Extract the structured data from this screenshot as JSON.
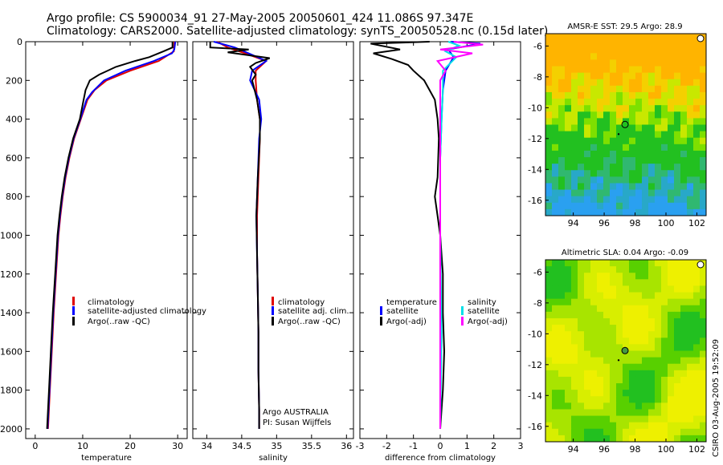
{
  "title": {
    "line1": "Argo profile: CS 5900034_91 27-May-2005 20050601_424 11.086S 97.347E",
    "line2": "Climatology: CARS2000. Satellite-adjusted climatology: synTS_20050528.nc (0.15d later)"
  },
  "colors": {
    "clim": "#e00000",
    "sat": "#0000ff",
    "argo": "#000000",
    "sal_sat": "#00e0e8",
    "sal_argo": "#ff00ff"
  },
  "chart_data": [
    {
      "type": "line",
      "name": "temperature",
      "xlabel": "temperature",
      "xlim": [
        -2,
        32
      ],
      "ylim": [
        2050,
        0
      ],
      "xticks": [
        0,
        10,
        20,
        30
      ],
      "yticks": [
        0,
        200,
        400,
        600,
        800,
        1000,
        1200,
        1400,
        1600,
        1800,
        2000
      ],
      "legend": [
        "climatology",
        "satellite-adjusted climatology",
        "Argo(..raw -QC)"
      ],
      "series": [
        {
          "name": "climatology",
          "color": "clim",
          "points": [
            [
              29.3,
              0
            ],
            [
              29.2,
              50
            ],
            [
              26,
              100
            ],
            [
              20,
              150
            ],
            [
              15,
              200
            ],
            [
              12.5,
              250
            ],
            [
              11,
              300
            ],
            [
              9.6,
              400
            ],
            [
              8.2,
              500
            ],
            [
              7.2,
              600
            ],
            [
              6.4,
              700
            ],
            [
              5.8,
              800
            ],
            [
              5.3,
              900
            ],
            [
              4.9,
              1000
            ],
            [
              4.4,
              1200
            ],
            [
              3.9,
              1400
            ],
            [
              3.5,
              1600
            ],
            [
              3.1,
              1800
            ],
            [
              2.7,
              2000
            ]
          ]
        },
        {
          "name": "satellite-adjusted climatology",
          "color": "sat",
          "points": [
            [
              29.5,
              0
            ],
            [
              29.3,
              40
            ],
            [
              28.8,
              60
            ],
            [
              25,
              100
            ],
            [
              19,
              150
            ],
            [
              14.5,
              200
            ],
            [
              12,
              260
            ],
            [
              10.8,
              300
            ],
            [
              9.5,
              400
            ],
            [
              8.1,
              500
            ],
            [
              7.1,
              600
            ],
            [
              6.3,
              700
            ],
            [
              5.7,
              800
            ],
            [
              5.2,
              900
            ],
            [
              4.8,
              1000
            ],
            [
              4.3,
              1200
            ],
            [
              3.8,
              1400
            ],
            [
              3.4,
              1600
            ],
            [
              3.0,
              1800
            ],
            [
              2.6,
              2000
            ]
          ]
        },
        {
          "name": "Argo",
          "color": "argo",
          "points": [
            [
              28.9,
              0
            ],
            [
              28.9,
              30
            ],
            [
              27,
              50
            ],
            [
              24,
              80
            ],
            [
              21,
              100
            ],
            [
              17,
              130
            ],
            [
              13.5,
              170
            ],
            [
              11.5,
              200
            ],
            [
              10.6,
              250
            ],
            [
              10.2,
              300
            ],
            [
              9.4,
              400
            ],
            [
              8.0,
              500
            ],
            [
              7.0,
              600
            ],
            [
              6.2,
              700
            ],
            [
              5.6,
              800
            ],
            [
              5.1,
              900
            ],
            [
              4.7,
              1000
            ],
            [
              4.2,
              1200
            ],
            [
              3.7,
              1400
            ],
            [
              3.3,
              1600
            ],
            [
              2.9,
              1800
            ],
            [
              2.5,
              2000
            ]
          ]
        }
      ]
    },
    {
      "type": "line",
      "name": "salinity",
      "xlabel": "salinity",
      "xlim": [
        33.8,
        36.1
      ],
      "ylim": [
        2050,
        0
      ],
      "xticks": [
        34,
        34.5,
        35,
        35.5,
        36
      ],
      "legend": [
        "climatology",
        "satellite adj. clim.",
        "Argo(..raw -QC)"
      ],
      "annotation": [
        "Argo AUSTRALIA",
        "PI: Susan Wijffels"
      ],
      "series": [
        {
          "name": "climatology",
          "color": "clim",
          "points": [
            [
              34.15,
              0
            ],
            [
              34.3,
              30
            ],
            [
              34.55,
              60
            ],
            [
              34.85,
              100
            ],
            [
              34.7,
              150
            ],
            [
              34.7,
              200
            ],
            [
              34.72,
              300
            ],
            [
              34.76,
              400
            ],
            [
              34.76,
              500
            ],
            [
              34.74,
              700
            ],
            [
              34.72,
              900
            ],
            [
              34.72,
              1100
            ],
            [
              34.73,
              1300
            ],
            [
              34.74,
              1500
            ],
            [
              34.74,
              1700
            ],
            [
              34.75,
              1900
            ],
            [
              34.75,
              2000
            ]
          ]
        },
        {
          "name": "satellite adj. clim.",
          "color": "sat",
          "points": [
            [
              34.1,
              0
            ],
            [
              34.4,
              30
            ],
            [
              34.6,
              60
            ],
            [
              34.85,
              100
            ],
            [
              34.65,
              150
            ],
            [
              34.62,
              200
            ],
            [
              34.75,
              300
            ],
            [
              34.78,
              400
            ],
            [
              34.75,
              500
            ],
            [
              34.73,
              700
            ],
            [
              34.71,
              900
            ],
            [
              34.72,
              1100
            ],
            [
              34.73,
              1300
            ],
            [
              34.74,
              1500
            ],
            [
              34.74,
              1700
            ],
            [
              34.75,
              1900
            ],
            [
              34.75,
              2000
            ]
          ]
        },
        {
          "name": "Argo",
          "color": "argo",
          "points": [
            [
              34.05,
              0
            ],
            [
              34.05,
              30
            ],
            [
              34.6,
              40
            ],
            [
              34.3,
              55
            ],
            [
              34.9,
              85
            ],
            [
              34.7,
              110
            ],
            [
              34.62,
              130
            ],
            [
              34.7,
              170
            ],
            [
              34.65,
              200
            ],
            [
              34.72,
              300
            ],
            [
              34.76,
              400
            ],
            [
              34.76,
              500
            ],
            [
              34.73,
              700
            ],
            [
              34.71,
              900
            ],
            [
              34.72,
              1100
            ],
            [
              34.73,
              1300
            ],
            [
              34.74,
              1500
            ],
            [
              34.74,
              1700
            ],
            [
              34.75,
              1900
            ],
            [
              34.75,
              2000
            ]
          ]
        }
      ]
    },
    {
      "type": "line",
      "name": "difference",
      "xlabel": "difference from climatology",
      "xlim": [
        -3,
        3
      ],
      "ylim": [
        2050,
        0
      ],
      "xticks": [
        -3,
        -2,
        -1,
        0,
        1,
        2,
        3
      ],
      "legend_left": [
        "temperature",
        "satellite",
        "Argo(-adj)"
      ],
      "legend_right": [
        "salinity",
        "satellite",
        "Argo(-adj)"
      ],
      "series": [
        {
          "name": "temperature satellite",
          "color": "sat",
          "points": [
            [
              0.4,
              0
            ],
            [
              1.5,
              10
            ],
            [
              0.3,
              40
            ],
            [
              0.5,
              80
            ],
            [
              0.2,
              150
            ],
            [
              0.1,
              250
            ],
            [
              0.05,
              400
            ],
            [
              0,
              600
            ],
            [
              0,
              1000
            ],
            [
              0,
              1500
            ],
            [
              0,
              2000
            ]
          ]
        },
        {
          "name": "temperature Argo(-adj)",
          "color": "argo",
          "points": [
            [
              -0.4,
              0
            ],
            [
              -2.6,
              10
            ],
            [
              -1.5,
              40
            ],
            [
              -2.5,
              60
            ],
            [
              -1.8,
              90
            ],
            [
              -1.2,
              120
            ],
            [
              -1.0,
              150
            ],
            [
              -0.6,
              200
            ],
            [
              -0.4,
              250
            ],
            [
              -0.2,
              300
            ],
            [
              -0.1,
              400
            ],
            [
              -0.05,
              500
            ],
            [
              -0.1,
              700
            ],
            [
              -0.2,
              800
            ],
            [
              -0.1,
              900
            ],
            [
              0,
              1000
            ],
            [
              0.1,
              1200
            ],
            [
              0.1,
              1400
            ],
            [
              0.15,
              1600
            ],
            [
              0.1,
              1800
            ],
            [
              0,
              2000
            ]
          ]
        },
        {
          "name": "salinity satellite",
          "color": "sal_sat",
          "points": [
            [
              0.3,
              0
            ],
            [
              0.7,
              20
            ],
            [
              0.2,
              50
            ],
            [
              0.6,
              80
            ],
            [
              0.1,
              150
            ],
            [
              0.1,
              250
            ],
            [
              0.05,
              400
            ],
            [
              0,
              600
            ],
            [
              0,
              1000
            ],
            [
              0.05,
              1500
            ],
            [
              0,
              2000
            ]
          ]
        },
        {
          "name": "salinity Argo(-adj)",
          "color": "sal_argo",
          "points": [
            [
              0.5,
              0
            ],
            [
              1.6,
              15
            ],
            [
              0,
              40
            ],
            [
              1.2,
              60
            ],
            [
              -0.1,
              100
            ],
            [
              0.2,
              150
            ],
            [
              0,
              200
            ],
            [
              0,
              400
            ],
            [
              0,
              1000
            ],
            [
              0,
              1500
            ],
            [
              0,
              2000
            ]
          ]
        }
      ]
    }
  ],
  "maps": [
    {
      "title": "AMSR-E SST: 29.5 Argo: 28.9",
      "xticks": [
        94,
        96,
        98,
        100,
        102
      ],
      "yticks": [
        -6,
        -8,
        -10,
        -12,
        -14,
        -16
      ],
      "lon": [
        92.2,
        102.6
      ],
      "lat": [
        -5.2,
        -17
      ],
      "marker": [
        97.35,
        -11.09
      ],
      "kind": "sst"
    },
    {
      "title": "Altimetric SLA: 0.04 Argo: -0.09",
      "xticks": [
        94,
        96,
        98,
        100,
        102
      ],
      "yticks": [
        -6,
        -8,
        -10,
        -12,
        -14,
        -16
      ],
      "lon": [
        92.2,
        102.6
      ],
      "lat": [
        -5.2,
        -17
      ],
      "marker": [
        97.35,
        -11.09
      ],
      "kind": "sla"
    }
  ],
  "footer": "CSIRO 03-Aug-2005 19:52:09"
}
